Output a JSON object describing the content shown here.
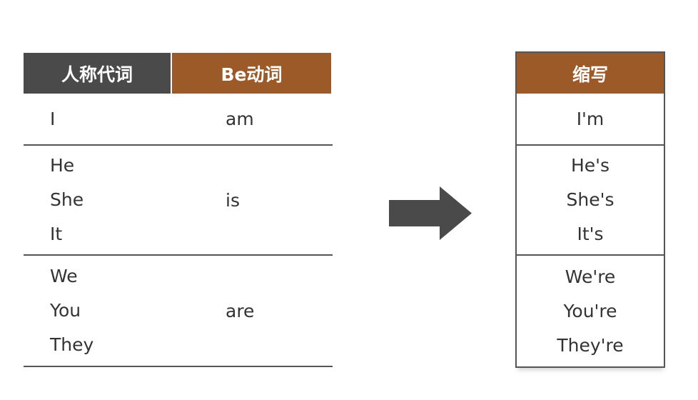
{
  "left_table": {
    "headers": {
      "pronoun": "人称代词",
      "be_verb": "Be动词"
    },
    "groups": [
      {
        "pronouns": [
          "I"
        ],
        "be": "am"
      },
      {
        "pronouns": [
          "He",
          "She",
          "It"
        ],
        "be": "is"
      },
      {
        "pronouns": [
          "We",
          "You",
          "They"
        ],
        "be": "are"
      }
    ]
  },
  "right_table": {
    "header": "缩写",
    "groups": [
      [
        "I'm"
      ],
      [
        "He's",
        "She's",
        "It's"
      ],
      [
        "We're",
        "You're",
        "They're"
      ]
    ]
  },
  "colors": {
    "dark_header": "#4a4a4a",
    "brown_header": "#9c5a29",
    "arrow": "#4a4a4a",
    "rule": "#555555",
    "text": "#333333"
  },
  "icons": {
    "arrow": "right-arrow-icon"
  }
}
